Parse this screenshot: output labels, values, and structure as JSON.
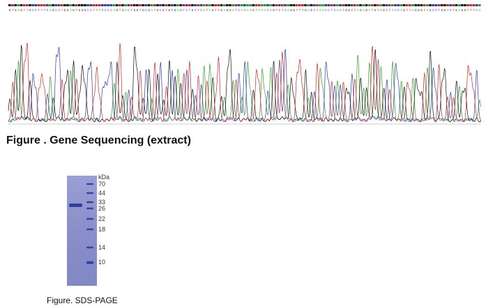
{
  "figure_sequencing": {
    "caption": "Figure . Gene Sequencing (extract)",
    "chromatogram": {
      "base_colors": {
        "A": "#2f9e2f",
        "C": "#2e3ea8",
        "G": "#111111",
        "T": "#cc2a2a"
      },
      "base_call_strip": "GTGAGTTGCCTTTCAGCCTGGAGTGGGCCTTTCCCCAGTGACTGGTGCGATGCGTGCGAGTCTGCTCATAGTTGAGGATCACAAGTTAACAGTCTCAGGTTTGAGCTAACCTCACTGGCTAGAGATGTAGCTACCAGTTAGGGTAGCCTGGTCTGAGGTTTCA"
    }
  },
  "figure_sds_page": {
    "caption": "Figure. SDS-PAGE",
    "marker_unit": "kDa",
    "marker_labels": [
      "70",
      "44",
      "33",
      "26",
      "22",
      "18",
      "14",
      "10"
    ],
    "gel_color": "#8a8fc8",
    "band_color": "#2c3a9e"
  }
}
